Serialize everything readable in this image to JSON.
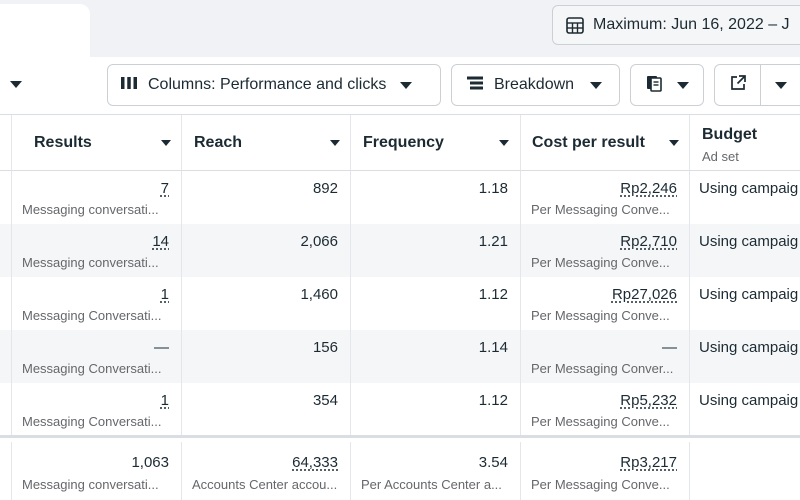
{
  "date_range": {
    "label": "Maximum: Jun 16, 2022 – J",
    "icon": "calendar-icon"
  },
  "toolbar": {
    "columns_label": "Columns: Performance and clicks",
    "breakdown_label": "Breakdown",
    "columns_icon": "columns-icon",
    "breakdown_icon": "breakdown-icon",
    "reports_icon": "reports-icon",
    "export_icon": "export-icon"
  },
  "table": {
    "headers": {
      "results": "Results",
      "reach": "Reach",
      "frequency": "Frequency",
      "cost_per_result": "Cost per result",
      "budget": "Budget",
      "budget_sub": "Ad set"
    },
    "rows": [
      {
        "results": "7",
        "results_sub": "Messaging conversati...",
        "reach": "892",
        "frequency": "1.18",
        "cost": "Rp2,246",
        "cost_sub": "Per Messaging Conve...",
        "budget": "Using campaig"
      },
      {
        "results": "14",
        "results_sub": "Messaging conversati...",
        "reach": "2,066",
        "frequency": "1.21",
        "cost": "Rp2,710",
        "cost_sub": "Per Messaging Conve...",
        "budget": "Using campaig"
      },
      {
        "results": "1",
        "results_sub": "Messaging Conversati...",
        "reach": "1,460",
        "frequency": "1.12",
        "cost": "Rp27,026",
        "cost_sub": "Per Messaging Conve...",
        "budget": "Using campaig"
      },
      {
        "results": "—",
        "results_sub": "Messaging Conversati...",
        "reach": "156",
        "frequency": "1.14",
        "cost": "—",
        "cost_sub": "Per Messaging Conver...",
        "budget": "Using campaig"
      },
      {
        "results": "1",
        "results_sub": "Messaging Conversati...",
        "reach": "354",
        "frequency": "1.12",
        "cost": "Rp5,232",
        "cost_sub": "Per Messaging Conve...",
        "budget": "Using campaig"
      }
    ],
    "totals": {
      "results": "1,063",
      "results_sub": "Messaging conversati...",
      "reach": "64,333",
      "reach_sub": "Accounts Center accou...",
      "frequency": "3.54",
      "frequency_sub": "Per Accounts Center a...",
      "cost": "Rp3,217",
      "cost_sub": "Per Messaging Conve..."
    }
  }
}
